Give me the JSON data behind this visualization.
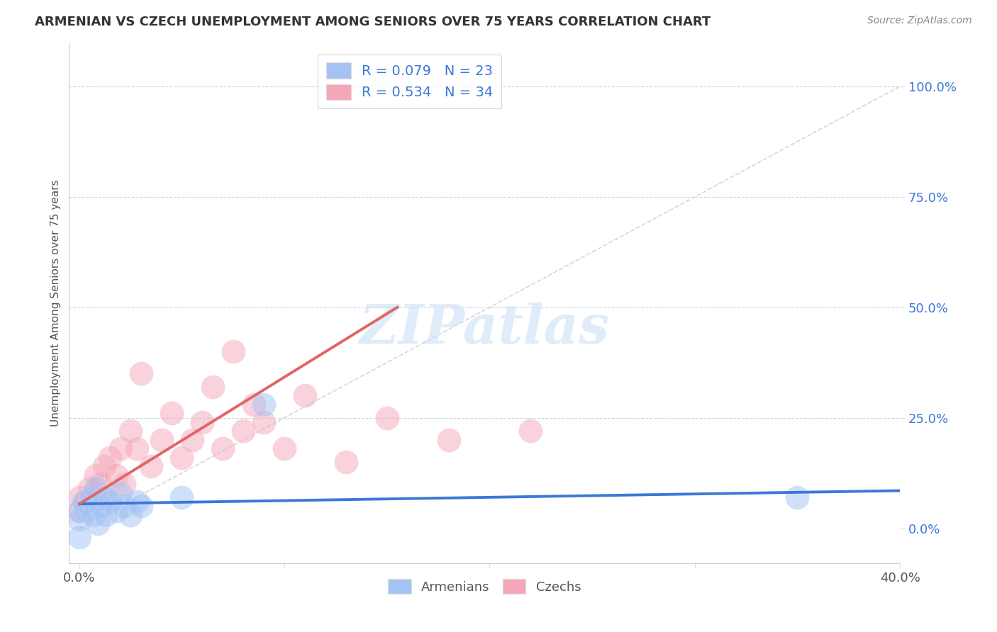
{
  "title": "ARMENIAN VS CZECH UNEMPLOYMENT AMONG SENIORS OVER 75 YEARS CORRELATION CHART",
  "source": "Source: ZipAtlas.com",
  "ylabel": "Unemployment Among Seniors over 75 years",
  "xlim": [
    -0.005,
    0.4
  ],
  "ylim": [
    -0.08,
    1.1
  ],
  "yticks": [
    0.0,
    0.25,
    0.5,
    0.75,
    1.0
  ],
  "ytick_labels": [
    "0.0%",
    "25.0%",
    "50.0%",
    "75.0%",
    "100.0%"
  ],
  "xticks": [
    0.0,
    0.1,
    0.2,
    0.3,
    0.4
  ],
  "xtick_labels": [
    "0.0%",
    "",
    "",
    "",
    "40.0%"
  ],
  "watermark": "ZIPatlas",
  "legend_armenian": "R = 0.079   N = 23",
  "legend_czech": "R = 0.534   N = 34",
  "armenian_color": "#a4c2f4",
  "czech_color": "#f4a7b9",
  "armenian_line_color": "#3c78d8",
  "czech_line_color": "#e06666",
  "diag_color": "#cccccc",
  "grid_color": "#c8d8e8",
  "armenians_x": [
    0.0,
    0.0,
    0.0,
    0.002,
    0.003,
    0.005,
    0.006,
    0.007,
    0.008,
    0.009,
    0.01,
    0.012,
    0.013,
    0.015,
    0.018,
    0.02,
    0.022,
    0.025,
    0.028,
    0.03,
    0.05,
    0.09,
    0.35
  ],
  "armenians_y": [
    0.04,
    0.02,
    -0.02,
    0.06,
    0.04,
    0.05,
    0.07,
    0.03,
    0.09,
    0.01,
    0.05,
    0.07,
    0.03,
    0.06,
    0.04,
    0.08,
    0.05,
    0.03,
    0.06,
    0.05,
    0.07,
    0.28,
    0.07
  ],
  "czechs_x": [
    0.0,
    0.0,
    0.003,
    0.005,
    0.007,
    0.008,
    0.01,
    0.012,
    0.013,
    0.015,
    0.018,
    0.02,
    0.022,
    0.025,
    0.028,
    0.03,
    0.035,
    0.04,
    0.045,
    0.05,
    0.055,
    0.06,
    0.065,
    0.07,
    0.075,
    0.08,
    0.085,
    0.09,
    0.1,
    0.11,
    0.13,
    0.15,
    0.18,
    0.22
  ],
  "czechs_y": [
    0.04,
    0.07,
    0.06,
    0.09,
    0.08,
    0.12,
    0.1,
    0.14,
    0.07,
    0.16,
    0.12,
    0.18,
    0.1,
    0.22,
    0.18,
    0.35,
    0.14,
    0.2,
    0.26,
    0.16,
    0.2,
    0.24,
    0.32,
    0.18,
    0.4,
    0.22,
    0.28,
    0.24,
    0.18,
    0.3,
    0.15,
    0.25,
    0.2,
    0.22
  ],
  "arm_trend_x": [
    0.0,
    0.4
  ],
  "arm_trend_y": [
    0.055,
    0.085
  ],
  "czech_trend_x": [
    0.0,
    0.155
  ],
  "czech_trend_y": [
    0.055,
    0.5
  ]
}
